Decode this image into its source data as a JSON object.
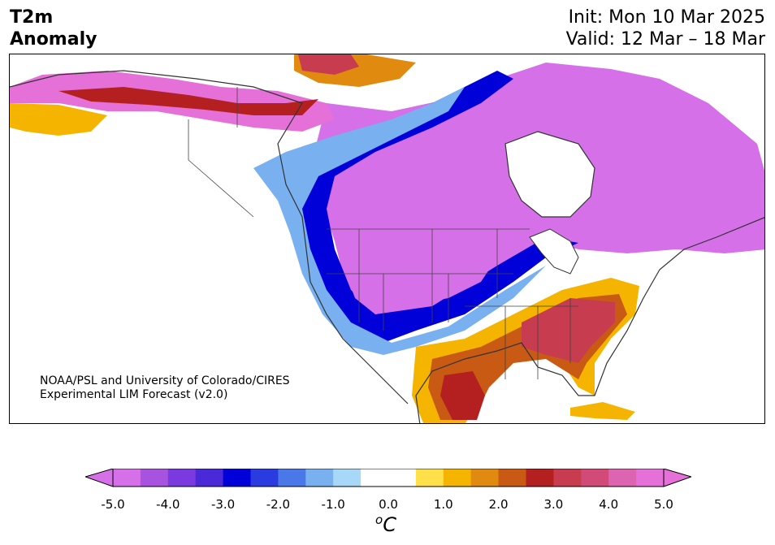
{
  "header": {
    "title_line1": "T2m",
    "title_line2": "Anomaly",
    "init": "Init: Mon 10 Mar 2025",
    "valid": "Valid: 12 Mar – 18 Mar"
  },
  "credit": {
    "line1": "NOAA/PSL and University of Colorado/CIRES",
    "line2": "Experimental LIM Forecast (v2.0)"
  },
  "colorbar": {
    "units_sup": "o",
    "units_base": "C",
    "ticks": [
      "-5.0",
      "-4.0",
      "-3.0",
      "-2.0",
      "-1.0",
      "0.0",
      "1.0",
      "2.0",
      "3.0",
      "4.0",
      "5.0"
    ],
    "colors": [
      "#d670e8",
      "#a852e0",
      "#7a3ae0",
      "#4a2ad8",
      "#0000d8",
      "#2a3ce0",
      "#4a78e8",
      "#78b0f0",
      "#a8d8f8",
      "#ffffff",
      "#ffffff",
      "#ffe04a",
      "#f4b400",
      "#e08a10",
      "#c85a14",
      "#b42020",
      "#c83c50",
      "#d24a78",
      "#dc64b0",
      "#e470d8"
    ],
    "under_color": "#d670e8",
    "over_color": "#e470d8"
  }
}
